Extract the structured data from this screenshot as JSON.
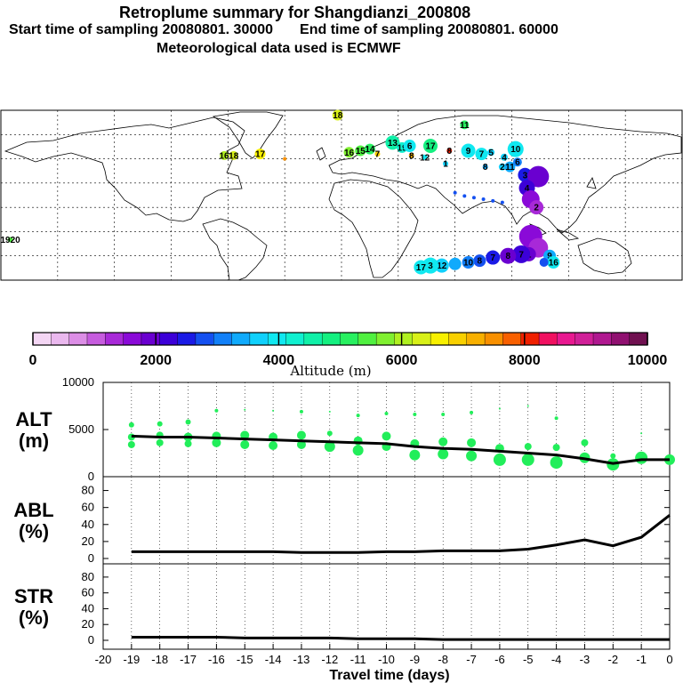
{
  "header": {
    "title": "Retroplume summary for Shangdianzi_200808",
    "start_label": "Start time of sampling 20080801. 30000",
    "end_label": "End time of sampling 20080801. 60000",
    "met_label": "Meteorological data used is ECMWF"
  },
  "colors": {
    "altitude_scale": [
      "#f4d6f4",
      "#eab8ee",
      "#dc8ee6",
      "#c65cde",
      "#a829d8",
      "#8a0ad8",
      "#6a00d0",
      "#3c00d8",
      "#1a1ae6",
      "#1450f0",
      "#1280f8",
      "#10aafc",
      "#10d0fc",
      "#10e8f0",
      "#10f0d0",
      "#10f0a8",
      "#14f080",
      "#28f060",
      "#50f040",
      "#80f030",
      "#b0f020",
      "#d8f018",
      "#f8f000",
      "#f8d000",
      "#f8b000",
      "#f89000",
      "#f86000",
      "#f02000",
      "#f01060",
      "#e81890",
      "#d02098",
      "#b01890",
      "#901070",
      "#701050"
    ],
    "scatter": "#22ee5a",
    "line": "#000000"
  },
  "colorbar": {
    "ticks": [
      "0",
      "2000",
      "4000",
      "6000",
      "8000",
      "10000"
    ],
    "label": "Altitude (m)"
  },
  "map": {
    "markers": [
      {
        "lon": -175,
        "lat": -20,
        "label": "1920",
        "color": "#50f040",
        "r": 3
      },
      {
        "lon": -62,
        "lat": 32,
        "label": "16",
        "color": "#b0f020",
        "r": 5
      },
      {
        "lon": -57,
        "lat": 32,
        "label": "18",
        "color": "#d8f018",
        "r": 5
      },
      {
        "lon": -43,
        "lat": 33,
        "label": "17",
        "color": "#f8f000",
        "r": 6
      },
      {
        "lon": -30,
        "lat": 30,
        "label": "",
        "color": "#f89000",
        "r": 2
      },
      {
        "lon": -2,
        "lat": 57,
        "label": "18",
        "color": "#d8f018",
        "r": 6
      },
      {
        "lon": 4,
        "lat": 34,
        "label": "16",
        "color": "#80f030",
        "r": 6
      },
      {
        "lon": 10,
        "lat": 35,
        "label": "15",
        "color": "#50f040",
        "r": 6
      },
      {
        "lon": 15,
        "lat": 36,
        "label": "14",
        "color": "#28f060",
        "r": 6
      },
      {
        "lon": 19,
        "lat": 33,
        "label": "7",
        "color": "#f8d000",
        "r": 3
      },
      {
        "lon": 27,
        "lat": 40,
        "label": "13",
        "color": "#10f0a8",
        "r": 8
      },
      {
        "lon": 32,
        "lat": 37,
        "label": "19",
        "color": "#10f0d0",
        "r": 6
      },
      {
        "lon": 36,
        "lat": 38,
        "label": "6",
        "color": "#10e8f0",
        "r": 7
      },
      {
        "lon": 37,
        "lat": 32,
        "label": "8",
        "color": "#f8b000",
        "r": 3
      },
      {
        "lon": 44,
        "lat": 31,
        "label": "12",
        "color": "#10e8f0",
        "r": 3
      },
      {
        "lon": 47,
        "lat": 38,
        "label": "17",
        "color": "#14f080",
        "r": 8
      },
      {
        "lon": 55,
        "lat": 27,
        "label": "1",
        "color": "#10d0fc",
        "r": 3
      },
      {
        "lon": 57,
        "lat": 35,
        "label": "8",
        "color": "#f02000",
        "r": 3
      },
      {
        "lon": 65,
        "lat": 51,
        "label": "11",
        "color": "#28f060",
        "r": 5
      },
      {
        "lon": 67,
        "lat": 35,
        "label": "9",
        "color": "#10e8f0",
        "r": 8
      },
      {
        "lon": 74,
        "lat": 33,
        "label": "7",
        "color": "#10e8f0",
        "r": 7
      },
      {
        "lon": 79,
        "lat": 34,
        "label": "5",
        "color": "#10d0fc",
        "r": 4
      },
      {
        "lon": 76,
        "lat": 25,
        "label": "8",
        "color": "#10aafc",
        "r": 3
      },
      {
        "lon": 86,
        "lat": 31,
        "label": "4",
        "color": "#10d0fc",
        "r": 4
      },
      {
        "lon": 92,
        "lat": 36,
        "label": "10",
        "color": "#10e8f0",
        "r": 9
      },
      {
        "lon": 85,
        "lat": 25,
        "label": "2",
        "color": "#10d0fc",
        "r": 4
      },
      {
        "lon": 89,
        "lat": 25,
        "label": "11",
        "color": "#10aafc",
        "r": 6
      },
      {
        "lon": 93,
        "lat": 28,
        "label": "6",
        "color": "#1280f8",
        "r": 5
      },
      {
        "lon": 97,
        "lat": 20,
        "label": "3",
        "color": "#1a1ae6",
        "r": 8
      },
      {
        "lon": 104,
        "lat": 19,
        "label": "",
        "color": "#6a00d0",
        "r": 12
      },
      {
        "lon": 98,
        "lat": 12,
        "label": "4",
        "color": "#3c00d8",
        "r": 9
      },
      {
        "lon": 100,
        "lat": 5,
        "label": "",
        "color": "#8a0ad8",
        "r": 10
      },
      {
        "lon": 103,
        "lat": 0,
        "label": "2",
        "color": "#a829d8",
        "r": 8
      },
      {
        "lon": 60,
        "lat": 9,
        "label": "",
        "color": "#1450f0",
        "r": 2
      },
      {
        "lon": 65,
        "lat": 7,
        "label": "",
        "color": "#1450f0",
        "r": 2
      },
      {
        "lon": 70,
        "lat": 6,
        "label": "",
        "color": "#1450f0",
        "r": 2
      },
      {
        "lon": 75,
        "lat": 5,
        "label": "",
        "color": "#1450f0",
        "r": 2
      },
      {
        "lon": 80,
        "lat": 4,
        "label": "",
        "color": "#1450f0",
        "r": 2
      },
      {
        "lon": 85,
        "lat": 3,
        "label": "",
        "color": "#1450f0",
        "r": 2
      },
      {
        "lon": 100,
        "lat": -18,
        "label": "",
        "color": "#8a0ad8",
        "r": 13
      },
      {
        "lon": 104,
        "lat": -25,
        "label": "",
        "color": "#a829d8",
        "r": 11
      },
      {
        "lon": 99,
        "lat": -29,
        "label": "1",
        "color": "#6a00d0",
        "r": 8
      },
      {
        "lon": 95,
        "lat": -29,
        "label": "7",
        "color": "#3c00d8",
        "r": 10
      },
      {
        "lon": 88,
        "lat": -30,
        "label": "8",
        "color": "#6a00d0",
        "r": 9
      },
      {
        "lon": 80,
        "lat": -31,
        "label": "7",
        "color": "#1a1ae6",
        "r": 8
      },
      {
        "lon": 73,
        "lat": -33,
        "label": "8",
        "color": "#1450f0",
        "r": 7
      },
      {
        "lon": 67,
        "lat": -34,
        "label": "10",
        "color": "#1280f8",
        "r": 7
      },
      {
        "lon": 60,
        "lat": -35,
        "label": "",
        "color": "#10aafc",
        "r": 7
      },
      {
        "lon": 53,
        "lat": -36,
        "label": "12",
        "color": "#10d0fc",
        "r": 8
      },
      {
        "lon": 47,
        "lat": -36,
        "label": "3",
        "color": "#10e8f0",
        "r": 9
      },
      {
        "lon": 42,
        "lat": -37,
        "label": "17",
        "color": "#10e8f0",
        "r": 8
      },
      {
        "lon": 110,
        "lat": -30,
        "label": "9",
        "color": "#10aafc",
        "r": 7
      },
      {
        "lon": 112,
        "lat": -34,
        "label": "16",
        "color": "#10e8f0",
        "r": 7
      },
      {
        "lon": 107,
        "lat": -34,
        "label": "",
        "color": "#1450f0",
        "r": 5
      }
    ]
  },
  "chart_data": [
    {
      "type": "line+scatter",
      "panel": "ALT",
      "ylabel_line1": "ALT",
      "ylabel_line2": "(m)",
      "ylim": [
        0,
        10000
      ],
      "yticks": [
        "0",
        "5000",
        "10000"
      ],
      "xlim": [
        -20,
        0
      ],
      "line": {
        "x": [
          -19,
          -18,
          -17,
          -16,
          -15,
          -14,
          -13,
          -12,
          -11,
          -10,
          -9,
          -8,
          -7,
          -6,
          -5,
          -4,
          -3,
          -2,
          -1,
          0
        ],
        "y": [
          4300,
          4200,
          4200,
          4100,
          4000,
          3900,
          3800,
          3700,
          3600,
          3500,
          3200,
          3000,
          2900,
          2700,
          2500,
          2300,
          1900,
          1400,
          1800,
          1800
        ]
      },
      "scatter": [
        {
          "x": -19,
          "y": 5500,
          "s": 3
        },
        {
          "x": -19,
          "y": 4200,
          "s": 4
        },
        {
          "x": -19,
          "y": 3400,
          "s": 4
        },
        {
          "x": -18,
          "y": 5600,
          "s": 3
        },
        {
          "x": -18,
          "y": 4400,
          "s": 4
        },
        {
          "x": -18,
          "y": 3600,
          "s": 4
        },
        {
          "x": -17,
          "y": 5800,
          "s": 3
        },
        {
          "x": -17,
          "y": 4200,
          "s": 5
        },
        {
          "x": -17,
          "y": 3500,
          "s": 4
        },
        {
          "x": -16,
          "y": 7000,
          "s": 2
        },
        {
          "x": -16,
          "y": 4300,
          "s": 5
        },
        {
          "x": -16,
          "y": 3600,
          "s": 5
        },
        {
          "x": -15,
          "y": 7100,
          "s": 1
        },
        {
          "x": -15,
          "y": 4400,
          "s": 5
        },
        {
          "x": -15,
          "y": 3400,
          "s": 5
        },
        {
          "x": -14,
          "y": 7000,
          "s": 1
        },
        {
          "x": -14,
          "y": 4200,
          "s": 5
        },
        {
          "x": -14,
          "y": 3300,
          "s": 5
        },
        {
          "x": -13,
          "y": 6900,
          "s": 2
        },
        {
          "x": -13,
          "y": 4400,
          "s": 5
        },
        {
          "x": -13,
          "y": 3400,
          "s": 5
        },
        {
          "x": -12,
          "y": 6900,
          "s": 1
        },
        {
          "x": -12,
          "y": 4600,
          "s": 3
        },
        {
          "x": -12,
          "y": 3200,
          "s": 6
        },
        {
          "x": -11,
          "y": 6500,
          "s": 2
        },
        {
          "x": -11,
          "y": 3800,
          "s": 5
        },
        {
          "x": -11,
          "y": 2800,
          "s": 6
        },
        {
          "x": -10,
          "y": 6700,
          "s": 2
        },
        {
          "x": -10,
          "y": 4300,
          "s": 5
        },
        {
          "x": -10,
          "y": 3200,
          "s": 5
        },
        {
          "x": -9,
          "y": 6600,
          "s": 2
        },
        {
          "x": -9,
          "y": 3500,
          "s": 5
        },
        {
          "x": -9,
          "y": 2300,
          "s": 6
        },
        {
          "x": -8,
          "y": 6600,
          "s": 2
        },
        {
          "x": -8,
          "y": 3700,
          "s": 5
        },
        {
          "x": -8,
          "y": 2400,
          "s": 6
        },
        {
          "x": -7,
          "y": 6800,
          "s": 2
        },
        {
          "x": -7,
          "y": 3600,
          "s": 5
        },
        {
          "x": -7,
          "y": 2200,
          "s": 6
        },
        {
          "x": -6,
          "y": 7200,
          "s": 1
        },
        {
          "x": -6,
          "y": 3000,
          "s": 5
        },
        {
          "x": -6,
          "y": 1800,
          "s": 7
        },
        {
          "x": -5,
          "y": 7500,
          "s": 1
        },
        {
          "x": -5,
          "y": 3200,
          "s": 4
        },
        {
          "x": -5,
          "y": 1800,
          "s": 7
        },
        {
          "x": -4,
          "y": 6200,
          "s": 2
        },
        {
          "x": -4,
          "y": 3100,
          "s": 4
        },
        {
          "x": -4,
          "y": 1500,
          "s": 7
        },
        {
          "x": -3,
          "y": 3600,
          "s": 4
        },
        {
          "x": -3,
          "y": 2000,
          "s": 6
        },
        {
          "x": -2,
          "y": 2200,
          "s": 3
        },
        {
          "x": -2,
          "y": 1300,
          "s": 7
        },
        {
          "x": -1,
          "y": 4600,
          "s": 1
        },
        {
          "x": -1,
          "y": 2000,
          "s": 7
        },
        {
          "x": 0,
          "y": 1800,
          "s": 6
        }
      ]
    },
    {
      "type": "line",
      "panel": "ABL",
      "ylabel_line1": "ABL",
      "ylabel_line2": "(%)",
      "ylim": [
        0,
        90
      ],
      "yticks": [
        "0",
        "20",
        "40",
        "60",
        "80"
      ],
      "x": [
        -19,
        -18,
        -17,
        -16,
        -15,
        -14,
        -13,
        -12,
        -11,
        -10,
        -9,
        -8,
        -7,
        -6,
        -5,
        -4,
        -3,
        -2,
        -1,
        0
      ],
      "y": [
        8,
        8,
        8,
        8,
        8,
        8,
        7,
        7,
        7,
        8,
        8,
        9,
        9,
        9,
        11,
        16,
        22,
        15,
        25,
        51
      ]
    },
    {
      "type": "line",
      "panel": "STR",
      "ylabel_line1": "STR",
      "ylabel_line2": "(%)",
      "ylim": [
        0,
        90
      ],
      "yticks": [
        "0",
        "20",
        "40",
        "60",
        "80"
      ],
      "x": [
        -19,
        -18,
        -17,
        -16,
        -15,
        -14,
        -13,
        -12,
        -11,
        -10,
        -9,
        -8,
        -7,
        -6,
        -5,
        -4,
        -3,
        -2,
        -1,
        0
      ],
      "y": [
        4,
        4,
        4,
        4,
        3,
        3,
        3,
        3,
        2,
        2,
        2,
        1,
        1,
        1,
        1,
        1,
        1,
        1,
        1,
        1
      ]
    }
  ],
  "xaxis": {
    "ticks": [
      "-20",
      "-19",
      "-18",
      "-17",
      "-16",
      "-15",
      "-14",
      "-13",
      "-12",
      "-11",
      "-10",
      "-9",
      "-8",
      "-7",
      "-6",
      "-5",
      "-4",
      "-3",
      "-2",
      "-1",
      "0"
    ],
    "label": "Travel time (days)"
  }
}
